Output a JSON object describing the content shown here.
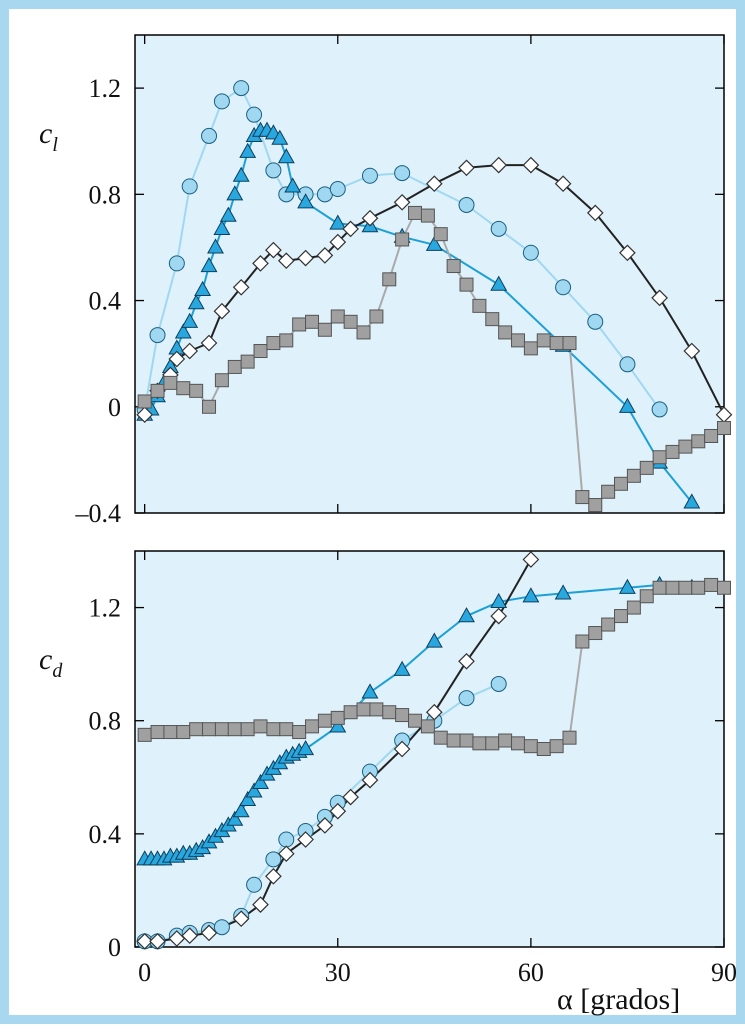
{
  "style": {
    "frame_color": "#a8d8f0",
    "plot_bg": "#dff1fb",
    "axis_color": "#000000"
  },
  "chart_data": [
    {
      "type": "line",
      "ylabel": "c",
      "ylabel_sub": "l",
      "xlabel": "",
      "xlim": [
        -1.5,
        90
      ],
      "ylim": [
        -0.4,
        1.4
      ],
      "x_ticks": [
        0,
        30,
        60,
        90
      ],
      "x_tick_labels": [
        "",
        "",
        "",
        ""
      ],
      "y_ticks": [
        1.2,
        0.8,
        0.4,
        0,
        -0.4
      ],
      "y_tick_labels": [
        "1.2",
        "0.8",
        "0.4",
        "0",
        "–0.4"
      ],
      "series": [
        {
          "marker": "circle",
          "fill": "#9fd8f0",
          "line": "#9fd8f0",
          "x": [
            0,
            2,
            5,
            7,
            10,
            12,
            15,
            17,
            20,
            22,
            25,
            28,
            30,
            35,
            40,
            50,
            55,
            60,
            65,
            70,
            75,
            80
          ],
          "y": [
            -0.01,
            0.27,
            0.54,
            0.83,
            1.02,
            1.15,
            1.2,
            1.1,
            0.89,
            0.8,
            0.8,
            0.8,
            0.82,
            0.87,
            0.88,
            0.76,
            0.67,
            0.58,
            0.45,
            0.32,
            0.16,
            -0.01
          ]
        },
        {
          "marker": "triangle",
          "fill": "#29a8e0",
          "line": "#1ba0d8",
          "x": [
            0,
            1,
            2,
            3,
            4,
            5,
            6,
            7,
            8,
            9,
            10,
            11,
            12,
            13,
            14,
            15,
            16,
            17,
            18,
            19,
            20,
            21,
            22,
            23,
            25,
            30,
            35,
            40,
            45,
            55,
            65,
            75,
            80,
            85
          ],
          "y": [
            -0.03,
            -0.01,
            0.04,
            0.09,
            0.15,
            0.22,
            0.28,
            0.32,
            0.39,
            0.44,
            0.53,
            0.6,
            0.67,
            0.72,
            0.8,
            0.87,
            0.96,
            1.02,
            1.04,
            1.04,
            1.03,
            1.01,
            0.94,
            0.83,
            0.77,
            0.69,
            0.68,
            0.64,
            0.61,
            0.46,
            0.23,
            0.0,
            -0.21,
            -0.36
          ]
        },
        {
          "marker": "diamond",
          "fill": "#ffffff",
          "line": "#222222",
          "x": [
            0,
            2,
            4,
            5,
            7,
            10,
            12,
            15,
            18,
            20,
            22,
            25,
            28,
            30,
            32,
            35,
            40,
            45,
            50,
            55,
            60,
            65,
            70,
            75,
            80,
            85,
            90
          ],
          "y": [
            -0.03,
            0.06,
            0.12,
            0.18,
            0.21,
            0.24,
            0.36,
            0.45,
            0.54,
            0.59,
            0.55,
            0.56,
            0.57,
            0.62,
            0.67,
            0.71,
            0.77,
            0.84,
            0.9,
            0.91,
            0.91,
            0.84,
            0.73,
            0.58,
            0.41,
            0.21,
            -0.03
          ]
        },
        {
          "marker": "square",
          "fill": "#a0a0a0",
          "line": "#aaaaaa",
          "x": [
            0,
            2,
            4,
            6,
            8,
            10,
            12,
            14,
            16,
            18,
            20,
            22,
            24,
            26,
            28,
            30,
            32,
            34,
            36,
            38,
            40,
            42,
            44,
            46,
            48,
            50,
            52,
            54,
            56,
            58,
            60,
            62,
            64,
            66,
            68,
            70,
            72,
            74,
            76,
            78,
            80,
            82,
            84,
            86,
            88,
            90
          ],
          "y": [
            0.02,
            0.06,
            0.09,
            0.07,
            0.06,
            0.0,
            0.1,
            0.15,
            0.17,
            0.21,
            0.24,
            0.25,
            0.31,
            0.32,
            0.29,
            0.34,
            0.32,
            0.28,
            0.34,
            0.48,
            0.63,
            0.73,
            0.72,
            0.65,
            0.53,
            0.46,
            0.38,
            0.33,
            0.28,
            0.25,
            0.22,
            0.25,
            0.24,
            0.24,
            -0.34,
            -0.37,
            -0.32,
            -0.29,
            -0.26,
            -0.23,
            -0.19,
            -0.17,
            -0.15,
            -0.13,
            -0.11,
            -0.08
          ]
        }
      ]
    },
    {
      "type": "line",
      "ylabel": "c",
      "ylabel_sub": "d",
      "xlabel": "α [grados]",
      "xlim": [
        -1.5,
        90
      ],
      "ylim": [
        0,
        1.4
      ],
      "x_ticks": [
        0,
        30,
        60,
        90
      ],
      "x_tick_labels": [
        "0",
        "30",
        "60",
        "90"
      ],
      "y_ticks": [
        1.2,
        0.8,
        0.4,
        0
      ],
      "y_tick_labels": [
        "1.2",
        "0.8",
        "0.4",
        "0"
      ],
      "series": [
        {
          "marker": "circle",
          "fill": "#9fd8f0",
          "line": "#9fd8f0",
          "x": [
            0,
            2,
            5,
            7,
            10,
            12,
            15,
            17,
            20,
            22,
            25,
            28,
            30,
            35,
            40,
            45,
            50,
            55
          ],
          "y": [
            0.02,
            0.02,
            0.04,
            0.05,
            0.06,
            0.07,
            0.11,
            0.22,
            0.31,
            0.38,
            0.41,
            0.46,
            0.51,
            0.62,
            0.73,
            0.8,
            0.88,
            0.93
          ]
        },
        {
          "marker": "triangle",
          "fill": "#29a8e0",
          "line": "#1ba0d8",
          "x": [
            0,
            1,
            2,
            3,
            4,
            5,
            6,
            7,
            8,
            9,
            10,
            11,
            12,
            13,
            14,
            15,
            16,
            17,
            18,
            19,
            20,
            21,
            22,
            23,
            24,
            25,
            30,
            35,
            40,
            45,
            50,
            55,
            60,
            65,
            75,
            80,
            85
          ],
          "y": [
            0.31,
            0.31,
            0.31,
            0.31,
            0.32,
            0.32,
            0.33,
            0.33,
            0.34,
            0.35,
            0.37,
            0.39,
            0.41,
            0.43,
            0.45,
            0.48,
            0.52,
            0.55,
            0.58,
            0.61,
            0.63,
            0.65,
            0.67,
            0.68,
            0.69,
            0.7,
            0.78,
            0.9,
            0.98,
            1.08,
            1.17,
            1.22,
            1.24,
            1.25,
            1.27,
            1.28,
            1.27
          ]
        },
        {
          "marker": "diamond",
          "fill": "#ffffff",
          "line": "#222222",
          "x": [
            0,
            2,
            5,
            7,
            10,
            15,
            18,
            20,
            22,
            25,
            28,
            30,
            32,
            35,
            40,
            45,
            50,
            55,
            60
          ],
          "y": [
            0.02,
            0.02,
            0.03,
            0.04,
            0.05,
            0.1,
            0.15,
            0.25,
            0.33,
            0.38,
            0.43,
            0.48,
            0.53,
            0.59,
            0.7,
            0.83,
            1.01,
            1.17,
            1.37
          ]
        },
        {
          "marker": "square",
          "fill": "#a0a0a0",
          "line": "#aaaaaa",
          "x": [
            0,
            2,
            4,
            6,
            8,
            10,
            12,
            14,
            16,
            18,
            20,
            22,
            24,
            26,
            28,
            30,
            32,
            34,
            36,
            38,
            40,
            42,
            44,
            46,
            48,
            50,
            52,
            54,
            56,
            58,
            60,
            62,
            64,
            66,
            68,
            70,
            72,
            74,
            76,
            78,
            80,
            82,
            84,
            86,
            88,
            90
          ],
          "y": [
            0.75,
            0.76,
            0.76,
            0.76,
            0.77,
            0.77,
            0.77,
            0.77,
            0.77,
            0.78,
            0.77,
            0.77,
            0.76,
            0.78,
            0.8,
            0.81,
            0.83,
            0.84,
            0.84,
            0.83,
            0.82,
            0.8,
            0.78,
            0.74,
            0.73,
            0.73,
            0.72,
            0.72,
            0.73,
            0.72,
            0.71,
            0.7,
            0.71,
            0.74,
            1.08,
            1.11,
            1.14,
            1.17,
            1.2,
            1.24,
            1.27,
            1.27,
            1.27,
            1.27,
            1.28,
            1.27
          ]
        }
      ]
    }
  ]
}
